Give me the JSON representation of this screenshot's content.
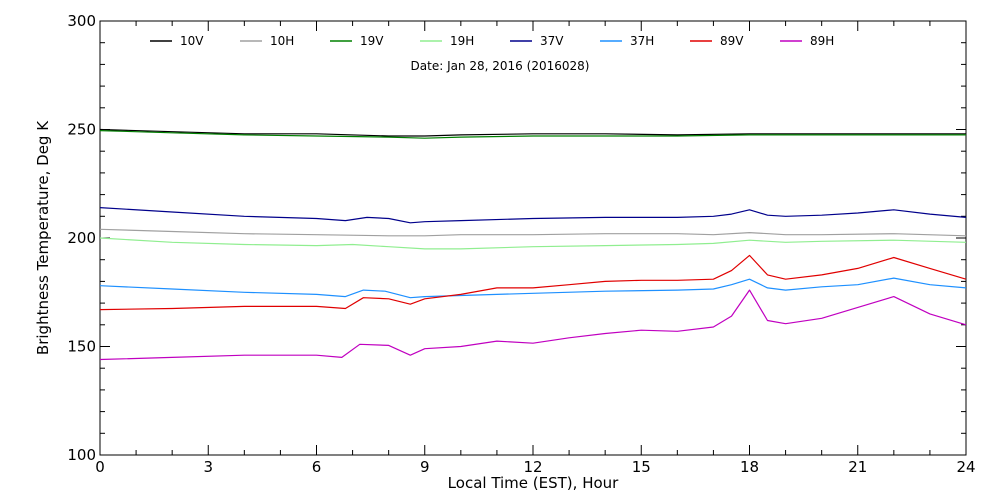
{
  "chart_data": {
    "type": "line",
    "title": "",
    "date_text": "Date: Jan 28, 2016 (2016028)",
    "xlabel": "Local Time (EST), Hour",
    "ylabel": "Brightness Temperature, Deg K",
    "xlim": [
      0,
      24
    ],
    "ylim": [
      100,
      300
    ],
    "xticks": [
      0,
      3,
      6,
      9,
      12,
      15,
      18,
      21,
      24
    ],
    "yticks": [
      100,
      150,
      200,
      250,
      300
    ],
    "grid": false,
    "legend_position": "top",
    "series": [
      {
        "name": "10V",
        "color": "#000000",
        "x": [
          0,
          2,
          4,
          6,
          8,
          9,
          10,
          12,
          14,
          16,
          18,
          20,
          22,
          24
        ],
        "y": [
          250,
          249,
          248,
          248,
          247,
          247,
          247.5,
          248,
          248,
          247.5,
          248,
          248,
          248,
          248
        ]
      },
      {
        "name": "10H",
        "color": "#a0a0a0",
        "x": [
          0,
          2,
          4,
          6,
          8,
          9,
          10,
          12,
          14,
          16,
          17,
          18,
          19,
          20,
          22,
          24
        ],
        "y": [
          204,
          203,
          202,
          201.5,
          201,
          201,
          201.5,
          201.5,
          202,
          202,
          201.5,
          202.5,
          201.5,
          201.5,
          202,
          201
        ]
      },
      {
        "name": "19V",
        "color": "#008000",
        "x": [
          0,
          2,
          4,
          6,
          8,
          9,
          10,
          12,
          14,
          16,
          18,
          20,
          22,
          24
        ],
        "y": [
          249.5,
          248.5,
          247.5,
          247,
          246.5,
          246,
          246.5,
          247,
          247,
          247,
          247.5,
          247.5,
          247.5,
          247.5
        ]
      },
      {
        "name": "19H",
        "color": "#90ee90",
        "x": [
          0,
          2,
          4,
          6,
          7,
          8,
          9,
          10,
          12,
          14,
          16,
          17,
          18,
          19,
          20,
          22,
          24
        ],
        "y": [
          200,
          198,
          197,
          196.5,
          197,
          196,
          195,
          195,
          196,
          196.5,
          197,
          197.5,
          199,
          198,
          198.5,
          199,
          198
        ]
      },
      {
        "name": "37V",
        "color": "#00008b",
        "x": [
          0,
          2,
          4,
          6,
          6.8,
          7.4,
          8,
          8.6,
          9,
          10,
          12,
          14,
          16,
          17,
          17.5,
          18,
          18.5,
          19,
          20,
          21,
          22,
          23,
          24
        ],
        "y": [
          214,
          212,
          210,
          209,
          208,
          209.5,
          209,
          207,
          207.5,
          208,
          209,
          209.5,
          209.5,
          210,
          211,
          213,
          210.5,
          210,
          210.5,
          211.5,
          213,
          211,
          209.5
        ]
      },
      {
        "name": "37H",
        "color": "#1e90ff",
        "x": [
          0,
          2,
          4,
          6,
          6.8,
          7.3,
          7.9,
          8.6,
          9,
          10,
          12,
          14,
          16,
          17,
          17.5,
          18,
          18.5,
          19,
          20,
          21,
          22,
          23,
          24
        ],
        "y": [
          178,
          176.5,
          175,
          174,
          173,
          176,
          175.5,
          172.5,
          173,
          173.5,
          174.5,
          175.5,
          176,
          176.5,
          178.5,
          181,
          177,
          176,
          177.5,
          178.5,
          181.5,
          178.5,
          177
        ]
      },
      {
        "name": "89V",
        "color": "#e00000",
        "x": [
          0,
          2,
          4,
          6,
          6.8,
          7.3,
          8,
          8.6,
          9,
          10,
          11,
          12,
          13,
          14,
          15,
          16,
          17,
          17.5,
          18,
          18.5,
          19,
          20,
          21,
          22,
          23,
          24
        ],
        "y": [
          167,
          167.5,
          168.5,
          168.5,
          167.5,
          172.5,
          172,
          169.5,
          172,
          174,
          177,
          177,
          178.5,
          180,
          180.5,
          180.5,
          181,
          185,
          192,
          183,
          181,
          183,
          186,
          191,
          186,
          181
        ]
      },
      {
        "name": "89H",
        "color": "#c000c0",
        "x": [
          0,
          2,
          4,
          6,
          6.7,
          7.2,
          8,
          8.6,
          9,
          10,
          11,
          12,
          13,
          14,
          15,
          16,
          17,
          17.5,
          18,
          18.5,
          19,
          20,
          21,
          22,
          23,
          24
        ],
        "y": [
          144,
          145,
          146,
          146,
          145,
          151,
          150.5,
          146,
          149,
          150,
          152.5,
          151.5,
          154,
          156,
          157.5,
          157,
          159,
          164,
          176,
          162,
          160.5,
          163,
          168,
          173,
          165,
          160
        ]
      }
    ]
  }
}
